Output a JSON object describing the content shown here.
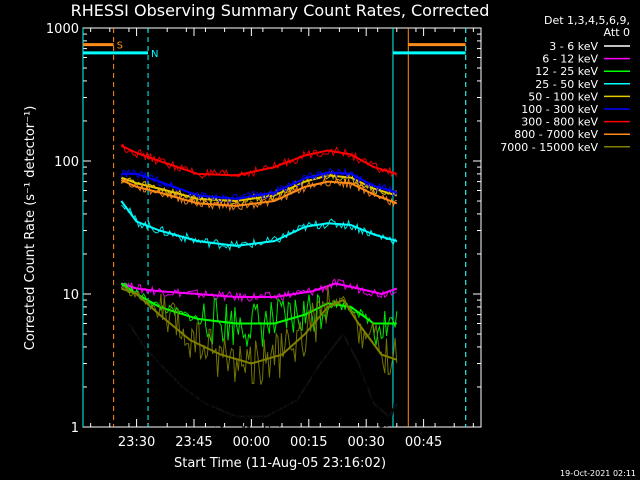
{
  "chart_data": {
    "type": "line",
    "title": "RHESSI Observing Summary Count Rates, Corrected",
    "xlabel": "Start Time (11-Aug-05 23:16:02)",
    "ylabel": "Corrected Count Rate (s⁻¹ detector⁻¹)",
    "yscale": "log",
    "ylim": [
      1,
      1000
    ],
    "xlim_minutes_after_2316": [
      0,
      104
    ],
    "x_ticks": [
      "23:30",
      "23:45",
      "00:00",
      "00:15",
      "00:30",
      "00:45"
    ],
    "x_tick_minutes": [
      14,
      29,
      44,
      59,
      74,
      89
    ],
    "y_ticks": [
      "1",
      "10",
      "100",
      "1000"
    ],
    "y_tick_values": [
      1,
      10,
      100,
      1000
    ],
    "legend_header": [
      "Det 1,3,4,5,6,9,",
      "Att 0"
    ],
    "timestamp": "19-Oct-2021 02:11",
    "flags": [
      {
        "label": "S",
        "color": "#ff8c1a",
        "level": 750,
        "x_start": 0,
        "x_end": 8,
        "x2_start": 85,
        "x2_end": 100
      },
      {
        "label": "N",
        "color": "#00ffff",
        "level": 650,
        "x_start": 0,
        "x_end": 17,
        "x2_start": 81,
        "x2_end": 100
      }
    ],
    "vlines": [
      {
        "x": 0,
        "color": "#00ffff",
        "style": "solid"
      },
      {
        "x": 8,
        "color": "#ff8c1a",
        "style": "dashed"
      },
      {
        "x": 17,
        "color": "#00ffff",
        "style": "dashed"
      },
      {
        "x": 81,
        "color": "#00ffff",
        "style": "solid"
      },
      {
        "x": 85,
        "color": "#ff8c1a",
        "style": "solid"
      },
      {
        "x": 100,
        "color": "#ff8c1a",
        "style": "dashed"
      },
      {
        "x": 100,
        "color": "#00ffff",
        "style": "dashed"
      }
    ],
    "series": [
      {
        "name": "3 - 6 keV",
        "color": "#000000",
        "x": [
          12,
          16,
          20,
          26,
          32,
          40,
          48,
          56,
          62,
          68,
          72,
          76,
          80,
          82
        ],
        "values": [
          6,
          4,
          3,
          2,
          1.5,
          1.2,
          1.2,
          1.6,
          3,
          5,
          3,
          1.5,
          1.2,
          1.5
        ]
      },
      {
        "name": "6 - 12 keV",
        "color": "#ff00ff",
        "x": [
          10,
          14,
          20,
          30,
          40,
          50,
          60,
          66,
          72,
          78,
          82
        ],
        "values": [
          12,
          11,
          10.5,
          10,
          9.5,
          9.5,
          10.5,
          12,
          11,
          10,
          11
        ]
      },
      {
        "name": "12 - 25 keV",
        "color": "#00ff00",
        "x": [
          10,
          14,
          20,
          30,
          40,
          50,
          58,
          64,
          70,
          76,
          82
        ],
        "values": [
          12,
          10,
          8,
          6.5,
          6,
          6,
          7,
          8.5,
          8,
          6,
          6
        ]
      },
      {
        "name": "25 - 50 keV",
        "color": "#00ffff",
        "x": [
          10,
          14,
          20,
          30,
          40,
          50,
          58,
          64,
          70,
          76,
          82
        ],
        "values": [
          50,
          35,
          30,
          25,
          23,
          25,
          32,
          34,
          33,
          28,
          25
        ]
      },
      {
        "name": "50 - 100 keV",
        "color": "#e6c800",
        "x": [
          10,
          14,
          20,
          30,
          40,
          50,
          58,
          64,
          70,
          76,
          82
        ],
        "values": [
          75,
          68,
          62,
          52,
          50,
          55,
          70,
          78,
          75,
          62,
          55
        ]
      },
      {
        "name": "100 - 300 keV",
        "color": "#0000ff",
        "x": [
          10,
          14,
          20,
          30,
          40,
          50,
          58,
          64,
          70,
          76,
          82
        ],
        "values": [
          80,
          80,
          70,
          55,
          52,
          58,
          74,
          82,
          80,
          65,
          58
        ]
      },
      {
        "name": "300 - 800 keV",
        "color": "#ff0000",
        "x": [
          10,
          14,
          20,
          30,
          40,
          50,
          58,
          64,
          70,
          76,
          82
        ],
        "values": [
          130,
          115,
          100,
          80,
          78,
          90,
          110,
          120,
          112,
          90,
          80
        ]
      },
      {
        "name": "800 - 7000 keV",
        "color": "#ff8c1a",
        "x": [
          10,
          14,
          20,
          30,
          40,
          50,
          58,
          64,
          70,
          76,
          82
        ],
        "values": [
          72,
          64,
          58,
          48,
          46,
          50,
          64,
          70,
          68,
          56,
          48
        ]
      },
      {
        "name": "7000 - 15000 keV",
        "color": "#808000",
        "x": [
          10,
          14,
          20,
          28,
          36,
          44,
          52,
          58,
          64,
          68,
          72,
          78,
          82
        ],
        "values": [
          11,
          10,
          7,
          4.5,
          3.5,
          3,
          3.5,
          5,
          8,
          9,
          6,
          3.5,
          3.2
        ]
      }
    ]
  }
}
